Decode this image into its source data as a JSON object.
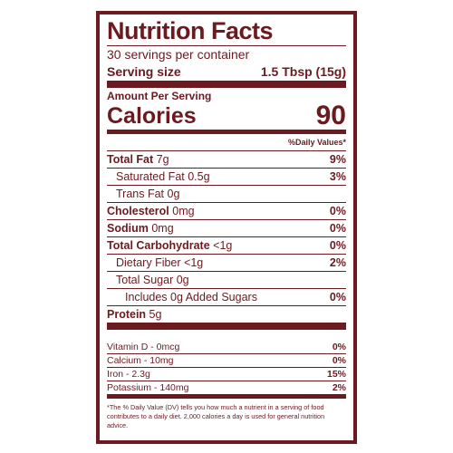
{
  "header": {
    "title": "Nutrition Facts",
    "servings": "30 servings per container",
    "serving_size_label": "Serving size",
    "serving_size": "1.5 Tbsp (15g)"
  },
  "calories": {
    "amount_per_serving": "Amount Per Serving",
    "label": "Calories",
    "value": "90"
  },
  "daily_value_heading": "%Daily Values*",
  "nutrients": [
    {
      "name": "Total Fat",
      "amount": "7g",
      "dv": "9%"
    },
    {
      "name": "Saturated Fat",
      "amount": "0.5g",
      "dv": "3%"
    },
    {
      "name": "Trans Fat",
      "amount": "0g"
    },
    {
      "name": "Cholesterol",
      "amount": "0mg",
      "dv": "0%"
    },
    {
      "name": "Sodium",
      "amount": "0mg",
      "dv": "0%"
    },
    {
      "name": "Total Carbohydrate",
      "amount": "<1g",
      "dv": "0%"
    },
    {
      "name": "Dietary Fiber",
      "amount": "<1g",
      "dv": "2%"
    },
    {
      "name": "Total Sugar",
      "amount": "0g"
    },
    {
      "name": "Includes 0g Added Sugars",
      "dv": "0%"
    },
    {
      "name": "Protein",
      "amount": "5g"
    }
  ],
  "vitamins": [
    {
      "name": "Vitamin D - 0mcg",
      "dv": "0%"
    },
    {
      "name": "Calcium - 10mg",
      "dv": "0%"
    },
    {
      "name": "Iron - 2.3g",
      "dv": "15%"
    },
    {
      "name": "Potassium - 140mg",
      "dv": "2%"
    }
  ],
  "footnote": "*The % Daily Value (DV) tells you how much a nutrient in a serving of food contributes to a daily diet. 2,000 calories a day is used for general nutrition advice."
}
